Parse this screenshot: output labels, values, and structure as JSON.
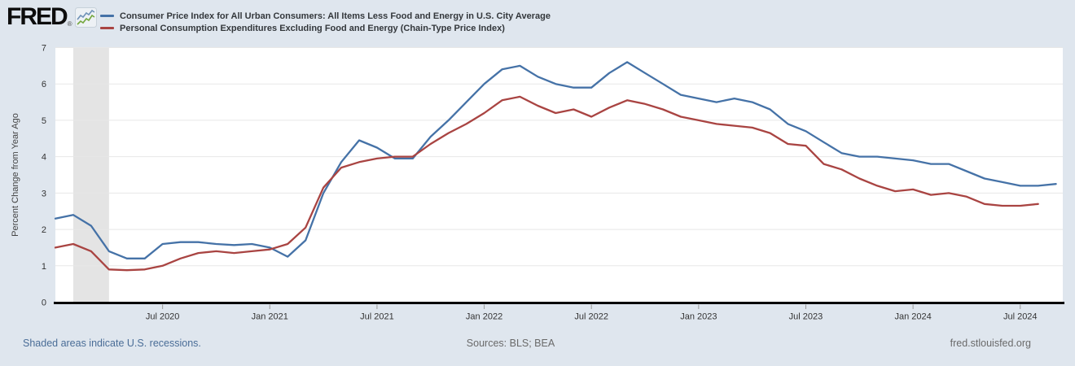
{
  "header": {
    "logo_text": "FRED",
    "registered_mark": "®",
    "legend": [
      {
        "label": "Consumer Price Index for All Urban Consumers: All Items Less Food and Energy in U.S. City Average",
        "color": "#4572a7"
      },
      {
        "label": "Personal Consumption Expenditures Excluding Food and Energy (Chain-Type Price Index)",
        "color": "#a94442"
      }
    ]
  },
  "chart_data": {
    "type": "line",
    "title": "",
    "xlabel": "",
    "ylabel": "Percent Change from Year Ago",
    "ylim": [
      0,
      7
    ],
    "yticks": [
      0,
      1,
      2,
      3,
      4,
      5,
      6,
      7
    ],
    "grid": "horizontal",
    "legend_position": "top-left",
    "x_start_month": "Jan 2020",
    "frequency": "monthly",
    "x_ticks": [
      {
        "label": "Jul 2020",
        "month_index": 6
      },
      {
        "label": "Jan 2021",
        "month_index": 12
      },
      {
        "label": "Jul 2021",
        "month_index": 18
      },
      {
        "label": "Jan 2022",
        "month_index": 24
      },
      {
        "label": "Jul 2022",
        "month_index": 30
      },
      {
        "label": "Jan 2023",
        "month_index": 36
      },
      {
        "label": "Jul 2023",
        "month_index": 42
      },
      {
        "label": "Jan 2024",
        "month_index": 48
      },
      {
        "label": "Jul 2024",
        "month_index": 54
      }
    ],
    "recession_shading": {
      "from_month_index": 1,
      "to_month_index": 3,
      "color": "#e4e4e4"
    },
    "series": [
      {
        "id": "cpi_core",
        "name": "Consumer Price Index for All Urban Consumers: All Items Less Food and Energy in U.S. City Average",
        "color": "#4572a7",
        "first_month": "Jan 2020",
        "last_month": "Sep 2024",
        "values": [
          2.3,
          2.4,
          2.1,
          1.4,
          1.2,
          1.2,
          1.6,
          1.65,
          1.65,
          1.6,
          1.57,
          1.6,
          1.5,
          1.25,
          1.7,
          3.0,
          3.85,
          4.45,
          4.25,
          3.95,
          3.95,
          4.55,
          5.0,
          5.5,
          6.0,
          6.4,
          6.5,
          6.2,
          6.0,
          5.9,
          5.9,
          6.3,
          6.6,
          6.3,
          6.0,
          5.7,
          5.6,
          5.5,
          5.6,
          5.5,
          5.3,
          4.9,
          4.7,
          4.4,
          4.1,
          4.0,
          4.0,
          3.95,
          3.9,
          3.8,
          3.8,
          3.6,
          3.4,
          3.3,
          3.2,
          3.2,
          3.25
        ]
      },
      {
        "id": "pce_core",
        "name": "Personal Consumption Expenditures Excluding Food and Energy (Chain-Type Price Index)",
        "color": "#a94442",
        "first_month": "Jan 2020",
        "last_month": "Aug 2024",
        "values": [
          1.5,
          1.6,
          1.4,
          0.9,
          0.88,
          0.9,
          1.0,
          1.2,
          1.35,
          1.4,
          1.35,
          1.4,
          1.45,
          1.6,
          2.05,
          3.15,
          3.7,
          3.85,
          3.95,
          4.0,
          4.0,
          4.35,
          4.65,
          4.9,
          5.2,
          5.55,
          5.65,
          5.4,
          5.2,
          5.3,
          5.1,
          5.35,
          5.55,
          5.45,
          5.3,
          5.1,
          5.0,
          4.9,
          4.85,
          4.8,
          4.65,
          4.35,
          4.3,
          3.8,
          3.65,
          3.4,
          3.2,
          3.05,
          3.1,
          2.95,
          3.0,
          2.9,
          2.7,
          2.65,
          2.65,
          2.7
        ]
      }
    ]
  },
  "footer": {
    "recession_note": "Shaded areas indicate U.S. recessions.",
    "sources": "Sources: BLS; BEA",
    "site": "fred.stlouisfed.org"
  },
  "colors": {
    "background": "#dfe6ee",
    "plot_background": "#ffffff",
    "gridline": "#e7e7e7",
    "axis_line": "#000000",
    "tick_mark": "#999999",
    "tick_label": "#333333",
    "axis_title": "#444444",
    "logo_spark_blue": "#6f92b7",
    "logo_spark_green": "#74a73e"
  }
}
